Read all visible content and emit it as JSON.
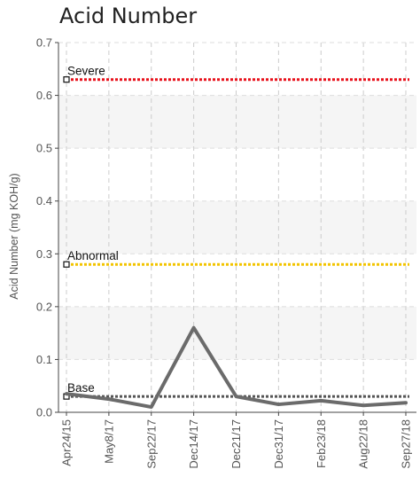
{
  "chart_data": {
    "type": "line",
    "title": "Acid Number",
    "xlabel": "",
    "ylabel": "Acid Number (mg KOH/g)",
    "ylim": [
      0,
      0.7
    ],
    "yticks": [
      "0.0",
      "0.1",
      "0.2",
      "0.3",
      "0.4",
      "0.5",
      "0.6",
      "0.7"
    ],
    "categories": [
      "Apr24/15",
      "May8/17",
      "Sep22/17",
      "Dec14/17",
      "Dec21/17",
      "Dec31/17",
      "Feb23/18",
      "Aug22/18",
      "Sep27/18"
    ],
    "series": [
      {
        "values": [
          0.035,
          0.025,
          0.01,
          0.16,
          0.03,
          0.015,
          0.022,
          0.013,
          0.018
        ],
        "color": "#6b6b6b"
      }
    ],
    "thresholds": [
      {
        "label": "Severe",
        "value": 0.63,
        "color": "#e8121c"
      },
      {
        "label": "Abnormal",
        "value": 0.28,
        "color": "#f2c400"
      },
      {
        "label": "Base",
        "value": 0.03,
        "color": "#555555"
      }
    ],
    "grid": true,
    "legend": "none"
  }
}
